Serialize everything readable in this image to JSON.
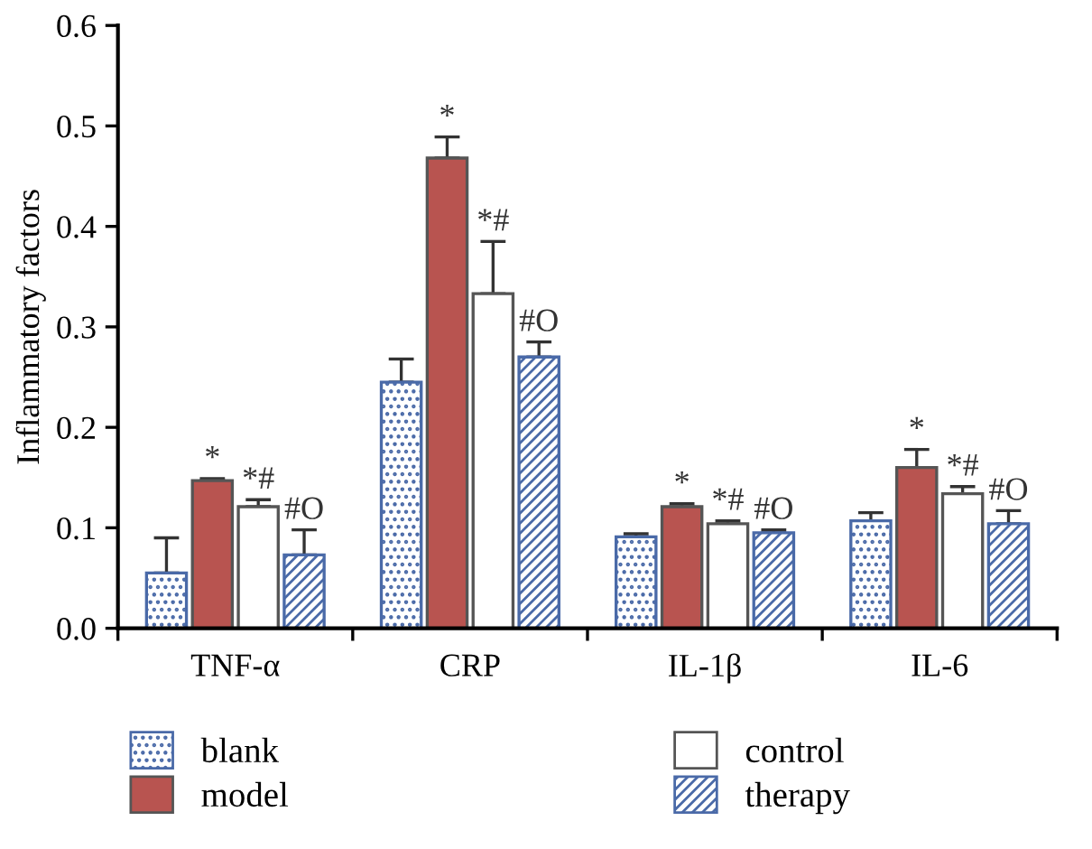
{
  "chart_data": {
    "type": "bar",
    "ylabel": "Inflammatory factors",
    "categories": [
      "TNF-α",
      "CRP",
      "IL-1β",
      "IL-6"
    ],
    "series": [
      {
        "name": "blank",
        "color": "#4a6aa8",
        "values": [
          0.055,
          0.245,
          0.091,
          0.107
        ],
        "errors": [
          [
            0.055,
            0.09
          ],
          [
            0.245,
            0.268
          ],
          [
            0.091,
            0.094
          ],
          [
            0.107,
            0.115
          ]
        ]
      },
      {
        "name": "model",
        "color": "#b85450",
        "values": [
          0.147,
          0.468,
          0.121,
          0.16
        ],
        "errors": [
          [
            0.147,
            0.149
          ],
          [
            0.468,
            0.489
          ],
          [
            0.121,
            0.124
          ],
          [
            0.16,
            0.178
          ]
        ],
        "value_labels": [
          "*",
          "*",
          "*",
          "*"
        ]
      },
      {
        "name": "control",
        "color": "#ffffff",
        "values": [
          0.121,
          0.333,
          0.104,
          0.134
        ],
        "errors": [
          [
            0.121,
            0.128
          ],
          [
            0.333,
            0.385
          ],
          [
            0.104,
            0.107
          ],
          [
            0.134,
            0.141
          ]
        ],
        "value_labels": [
          "*#",
          "*#",
          "*#",
          "*#"
        ]
      },
      {
        "name": "therapy",
        "color": "#4a6aa8",
        "values": [
          0.073,
          0.27,
          0.095,
          0.104
        ],
        "errors": [
          [
            0.073,
            0.098
          ],
          [
            0.27,
            0.285
          ],
          [
            0.095,
            0.098
          ],
          [
            0.104,
            0.117
          ]
        ],
        "value_labels": [
          "#O",
          "#O",
          "#O",
          "#O"
        ]
      }
    ],
    "ylim": [
      0,
      0.6
    ],
    "yticks": [
      {
        "value": 0,
        "label": "0.0"
      },
      0.1,
      0.2,
      0.3,
      0.4,
      0.5,
      0.6
    ],
    "legend": "bottom",
    "grid": false
  }
}
